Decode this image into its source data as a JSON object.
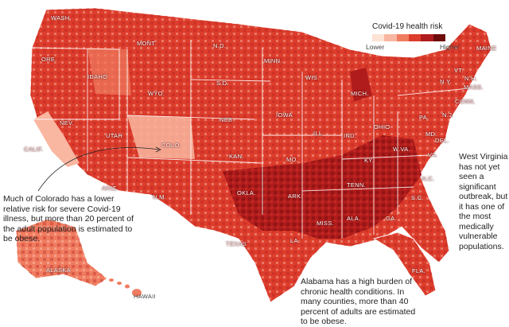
{
  "legend": {
    "title": "Covid-19 health risk",
    "low_label": "Lower",
    "high_label": "Higher",
    "colors": [
      "#fde3d6",
      "#f9b6a0",
      "#f07c60",
      "#dd3d2c",
      "#b01c1c",
      "#6e0b0b"
    ]
  },
  "state_labels": [
    "WASH.",
    "ORE.",
    "CALIF.",
    "IDAHO",
    "NEV.",
    "MONT.",
    "WYO.",
    "UTAH",
    "ARIZ.",
    "COLO.",
    "N.M.",
    "N.D.",
    "S.D.",
    "NEB.",
    "KAN.",
    "OKLA.",
    "TEXAS",
    "MINN.",
    "IOWA",
    "MO.",
    "ARK.",
    "LA.",
    "WIS.",
    "ILL.",
    "MICH.",
    "IND.",
    "OHIO",
    "KY.",
    "TENN.",
    "MISS.",
    "ALA.",
    "GA.",
    "FLA.",
    "S.C.",
    "N.C.",
    "VA.",
    "W.VA.",
    "PA.",
    "N.Y.",
    "VT.",
    "N.H.",
    "MAINE",
    "MASS.",
    "CONN.",
    "N.J.",
    "MD.",
    "DEL.",
    "ALASKA",
    "HAWAII"
  ],
  "annotations": {
    "colorado": "Much of Colorado has a lower relative risk for severe Covid-19 illness, but more than 20 percent of the adult population is estimated to be obese.",
    "west_virginia": "West Virginia has not yet seen a significant outbreak, but it has one of the most medically vulnerable populations.",
    "alabama": "Alabama has a high burden of chronic health conditions. In many counties, more than 40 percent of adults are estimated to be obese."
  }
}
